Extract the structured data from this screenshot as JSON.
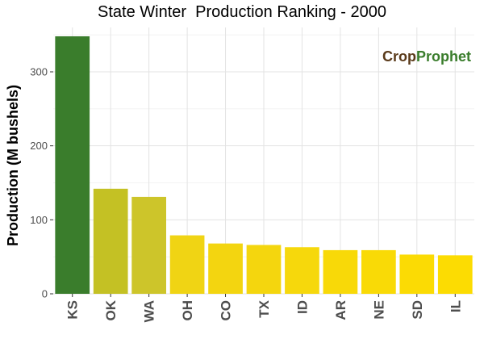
{
  "chart_data": {
    "type": "bar",
    "title": "State Winter  Production Ranking - 2000",
    "xlabel": "",
    "ylabel": "Production (M bushels)",
    "categories": [
      "KS",
      "OK",
      "WA",
      "OH",
      "CO",
      "TX",
      "ID",
      "AR",
      "NE",
      "SD",
      "IL"
    ],
    "values": [
      348,
      142,
      131,
      79,
      68,
      66,
      63,
      59,
      59,
      53,
      52
    ],
    "ylim": [
      0,
      360
    ],
    "yticks": [
      0,
      100,
      200,
      300
    ],
    "grid": true,
    "legend": "none",
    "bar_colors": [
      "#3a7d2c",
      "#c4c124",
      "#cdc52a",
      "#f0d414",
      "#f3d510",
      "#f4d60e",
      "#f6d80c",
      "#f8d908",
      "#f9da06",
      "#fbdb04",
      "#fcdc02"
    ]
  },
  "logo": {
    "part1": "Crop",
    "part2": "Prophet"
  }
}
